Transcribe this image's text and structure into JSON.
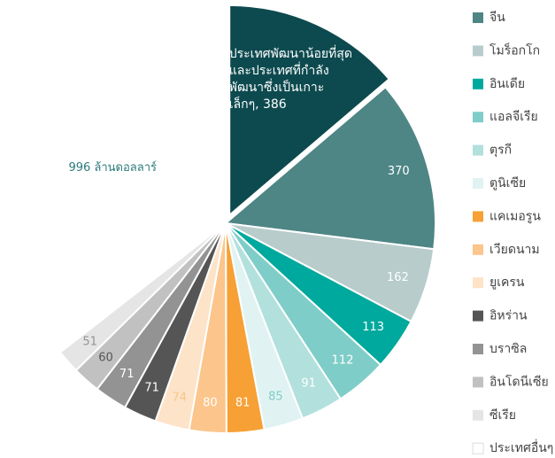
{
  "chart_data": {
    "type": "pie",
    "categories": [
      null,
      "จีน",
      "โมร็อกโก",
      "อินเดีย",
      "แอลจีเรีย",
      "ตุรกี",
      "ตูนิเซีย",
      "แคเมอรูน",
      "เวียดนาม",
      "ยูเครน",
      "อิหร่าน",
      "บราซิล",
      "อินโดนีเซีย",
      "ซีเรีย",
      "ประเทศอื่นๆ"
    ],
    "values": [
      386,
      370,
      162,
      113,
      112,
      91,
      85,
      81,
      80,
      74,
      71,
      71,
      60,
      51,
      996
    ],
    "value_labels": [
      "ประเทศพัฒนาน้อยที่สุดและประเทศที่กำลังพัฒนาซึ่งเป็นเกาะเล็กๆ, 386",
      "370",
      "162",
      "113",
      "112",
      "91",
      "85",
      "81",
      "80",
      "74",
      "71",
      "71",
      "60",
      "51",
      "996 ล้านดอลลาร์"
    ],
    "colors": [
      "#0d4a4f",
      "#4e8585",
      "#b8cccc",
      "#00a99d",
      "#7fcdc8",
      "#b2e0dd",
      "#e0f3f2",
      "#f7a035",
      "#fbc58b",
      "#fde3c7",
      "#555555",
      "#939393",
      "#c1c1c1",
      "#e5e5e5",
      "#ffffff"
    ],
    "label_colors": [
      "#ffffff",
      "#ffffff",
      "#ffffff",
      "#ffffff",
      "#ffffff",
      "#ffffff",
      "#7fcdc8",
      "#ffffff",
      "#ffffff",
      "#fbc58b",
      "#ffffff",
      "#ffffff",
      "#555555",
      "#939393",
      "#2a7a7a"
    ],
    "exploded": 0
  }
}
